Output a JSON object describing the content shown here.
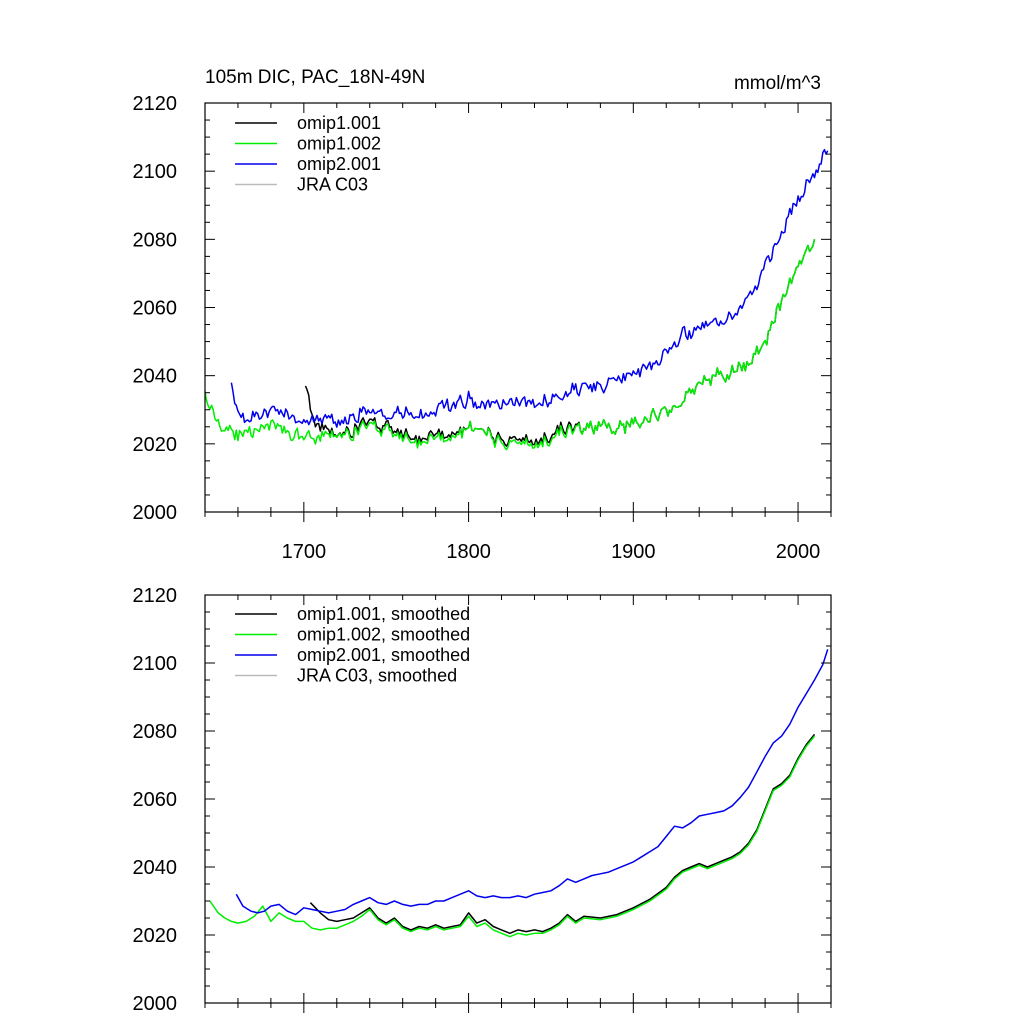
{
  "chart_data": [
    {
      "type": "line",
      "title": "105m DIC, PAC_18N-49N",
      "units_label": "mmol/m^3",
      "xlim": [
        1640,
        2020
      ],
      "ylim": [
        2000,
        2120
      ],
      "x_ticks": [
        1700,
        1800,
        1900,
        2000
      ],
      "x_tick_labels": [
        "1700",
        "1800",
        "1900",
        "2000"
      ],
      "y_ticks": [
        2000,
        2020,
        2040,
        2060,
        2080,
        2100,
        2120
      ],
      "y_tick_labels": [
        "2000",
        "2020",
        "2040",
        "2060",
        "2080",
        "2100",
        "2120"
      ],
      "legend_position": "top-left",
      "noisy": true,
      "series": [
        {
          "name": "omip1.001",
          "color": "#000000",
          "x": [
            1701,
            1704,
            1708,
            1712,
            1720,
            1730,
            1740,
            1750,
            1760,
            1770,
            1780,
            1790,
            1800,
            1810,
            1820,
            1830,
            1840,
            1850,
            1860,
            1870,
            1880,
            1890,
            1900,
            1910,
            1920,
            1930,
            1940,
            1950,
            1960,
            1970,
            1980,
            1990,
            2000,
            2010
          ],
          "y": [
            2037,
            2030,
            2026,
            2024,
            2022,
            2024,
            2027,
            2025,
            2022,
            2022,
            2023,
            2023,
            2025,
            2023,
            2021,
            2022,
            2021,
            2023,
            2025,
            2025,
            2025,
            2025,
            2026,
            2028,
            2030,
            2033,
            2037,
            2040,
            2041,
            2043,
            2050,
            2062,
            2072,
            2080
          ]
        },
        {
          "name": "omip1.002",
          "color": "#00ee00",
          "x": [
            1640,
            1645,
            1650,
            1660,
            1670,
            1680,
            1690,
            1700,
            1710,
            1720,
            1730,
            1740,
            1750,
            1760,
            1770,
            1780,
            1790,
            1800,
            1810,
            1820,
            1830,
            1840,
            1850,
            1860,
            1870,
            1880,
            1890,
            1900,
            1910,
            1920,
            1930,
            1940,
            1950,
            1960,
            1970,
            1980,
            1990,
            2000,
            2010
          ],
          "y": [
            2036,
            2028,
            2025,
            2023,
            2024,
            2025,
            2023,
            2022,
            2022,
            2022,
            2023,
            2026,
            2024,
            2021,
            2021,
            2022,
            2022,
            2025,
            2023,
            2020,
            2021,
            2020,
            2022,
            2024,
            2025,
            2025,
            2025,
            2026,
            2028,
            2030,
            2033,
            2037,
            2040,
            2041,
            2043,
            2050,
            2062,
            2072,
            2080
          ]
        },
        {
          "name": "omip2.001",
          "color": "#0000ee",
          "x": [
            1656,
            1660,
            1665,
            1670,
            1680,
            1690,
            1700,
            1710,
            1720,
            1730,
            1740,
            1750,
            1760,
            1770,
            1780,
            1790,
            1800,
            1810,
            1820,
            1830,
            1840,
            1850,
            1860,
            1870,
            1880,
            1890,
            1900,
            1910,
            1920,
            1930,
            1940,
            1950,
            1960,
            1970,
            1980,
            1990,
            2000,
            2010,
            2018
          ],
          "y": [
            2038,
            2030,
            2026,
            2028,
            2029,
            2028,
            2028,
            2027,
            2026,
            2027,
            2030,
            2029,
            2029,
            2029,
            2030,
            2031,
            2033,
            2031,
            2031,
            2032,
            2032,
            2033,
            2035,
            2036,
            2037,
            2039,
            2040,
            2043,
            2046,
            2052,
            2054,
            2056,
            2057,
            2062,
            2072,
            2082,
            2092,
            2100,
            2106
          ]
        },
        {
          "name": "JRA C03",
          "color": "#bbbbbb",
          "x": [],
          "y": []
        }
      ]
    },
    {
      "type": "line",
      "xlim": [
        1640,
        2020
      ],
      "ylim": [
        2000,
        2120
      ],
      "x_ticks": [
        1700,
        1800,
        1900,
        2000
      ],
      "y_ticks": [
        2000,
        2020,
        2040,
        2060,
        2080,
        2100,
        2120
      ],
      "y_tick_labels": [
        "2000",
        "2020",
        "2040",
        "2060",
        "2080",
        "2100",
        "2120"
      ],
      "legend_position": "top-left",
      "noisy": false,
      "series": [
        {
          "name": "omip1.001, smoothed",
          "color": "#000000",
          "x": [
            1704,
            1710,
            1715,
            1720,
            1725,
            1730,
            1735,
            1740,
            1745,
            1750,
            1755,
            1760,
            1765,
            1770,
            1775,
            1780,
            1785,
            1790,
            1795,
            1800,
            1805,
            1810,
            1815,
            1820,
            1825,
            1830,
            1835,
            1840,
            1845,
            1850,
            1855,
            1860,
            1865,
            1870,
            1880,
            1890,
            1900,
            1910,
            1920,
            1925,
            1930,
            1935,
            1940,
            1945,
            1950,
            1955,
            1960,
            1965,
            1970,
            1975,
            1980,
            1985,
            1990,
            1995,
            2000,
            2005,
            2010
          ],
          "y": [
            2029.5,
            2026.5,
            2024.5,
            2024.0,
            2024.5,
            2025.0,
            2026.5,
            2028.0,
            2025.0,
            2023.5,
            2025.0,
            2022.5,
            2021.5,
            2022.5,
            2022.0,
            2023.0,
            2022.0,
            2022.5,
            2023.0,
            2026.5,
            2023.5,
            2024.5,
            2022.5,
            2021.5,
            2020.5,
            2021.5,
            2021.0,
            2021.5,
            2021.0,
            2022.0,
            2023.5,
            2026.0,
            2024.0,
            2025.5,
            2025.0,
            2026.0,
            2028.0,
            2030.5,
            2034.0,
            2037.0,
            2039.0,
            2040.0,
            2041.0,
            2040.0,
            2041.0,
            2042.0,
            2043.0,
            2044.5,
            2047.0,
            2051.0,
            2057.0,
            2063.0,
            2064.5,
            2067.0,
            2072.0,
            2076.0,
            2079.0
          ]
        },
        {
          "name": "omip1.002, smoothed",
          "color": "#00ee00",
          "x": [
            1643,
            1648,
            1652,
            1656,
            1660,
            1665,
            1670,
            1675,
            1680,
            1685,
            1690,
            1695,
            1700,
            1705,
            1710,
            1715,
            1720,
            1725,
            1730,
            1735,
            1740,
            1745,
            1750,
            1755,
            1760,
            1765,
            1770,
            1775,
            1780,
            1785,
            1790,
            1795,
            1800,
            1805,
            1810,
            1815,
            1820,
            1825,
            1830,
            1835,
            1840,
            1845,
            1850,
            1855,
            1860,
            1865,
            1870,
            1880,
            1890,
            1900,
            1910,
            1920,
            1925,
            1930,
            1935,
            1940,
            1945,
            1950,
            1955,
            1960,
            1965,
            1970,
            1975,
            1980,
            1985,
            1990,
            1995,
            2000,
            2005,
            2010
          ],
          "y": [
            2030.0,
            2026.5,
            2025.0,
            2024.0,
            2023.5,
            2024.0,
            2025.5,
            2028.5,
            2024.0,
            2026.5,
            2025.0,
            2024.0,
            2024.0,
            2022.0,
            2021.5,
            2022.0,
            2022.0,
            2023.0,
            2024.0,
            2025.5,
            2027.5,
            2024.5,
            2023.0,
            2024.5,
            2022.0,
            2021.0,
            2022.0,
            2021.5,
            2022.5,
            2021.5,
            2022.0,
            2022.5,
            2025.5,
            2022.5,
            2023.5,
            2021.5,
            2020.5,
            2019.5,
            2020.5,
            2020.0,
            2020.5,
            2020.5,
            2021.5,
            2023.0,
            2025.5,
            2023.5,
            2025.0,
            2024.5,
            2025.5,
            2027.5,
            2030.0,
            2033.5,
            2036.5,
            2038.5,
            2039.5,
            2040.5,
            2039.5,
            2040.5,
            2041.5,
            2042.5,
            2044.0,
            2046.5,
            2050.5,
            2056.5,
            2062.5,
            2064.0,
            2066.5,
            2071.5,
            2075.5,
            2078.5
          ]
        },
        {
          "name": "omip2.001, smoothed",
          "color": "#0000ee",
          "x": [
            1659,
            1663,
            1668,
            1672,
            1676,
            1680,
            1685,
            1690,
            1695,
            1700,
            1705,
            1710,
            1715,
            1720,
            1725,
            1730,
            1735,
            1740,
            1745,
            1750,
            1755,
            1760,
            1765,
            1770,
            1775,
            1780,
            1785,
            1790,
            1795,
            1800,
            1805,
            1810,
            1815,
            1820,
            1825,
            1830,
            1835,
            1840,
            1845,
            1850,
            1855,
            1860,
            1865,
            1870,
            1875,
            1880,
            1885,
            1890,
            1895,
            1900,
            1905,
            1910,
            1915,
            1920,
            1925,
            1930,
            1935,
            1940,
            1945,
            1950,
            1955,
            1960,
            1965,
            1970,
            1975,
            1980,
            1985,
            1990,
            1995,
            2000,
            2005,
            2010,
            2015,
            2018
          ],
          "y": [
            2032.0,
            2028.5,
            2027.0,
            2026.5,
            2027.0,
            2028.5,
            2029.0,
            2027.0,
            2026.0,
            2028.0,
            2027.5,
            2027.0,
            2026.5,
            2027.0,
            2027.5,
            2029.0,
            2030.0,
            2031.0,
            2029.5,
            2029.0,
            2030.0,
            2029.0,
            2028.5,
            2029.0,
            2029.0,
            2030.0,
            2030.0,
            2031.0,
            2032.0,
            2033.0,
            2031.5,
            2031.0,
            2031.5,
            2031.0,
            2031.0,
            2031.5,
            2031.0,
            2032.0,
            2032.5,
            2033.0,
            2034.5,
            2036.5,
            2035.5,
            2036.5,
            2037.5,
            2038.0,
            2038.5,
            2039.5,
            2040.5,
            2041.5,
            2043.0,
            2044.5,
            2046.0,
            2049.0,
            2052.0,
            2051.5,
            2053.0,
            2055.0,
            2055.5,
            2056.0,
            2056.5,
            2058.0,
            2060.5,
            2063.5,
            2068.0,
            2072.5,
            2076.5,
            2078.5,
            2082.0,
            2087.0,
            2091.0,
            2095.0,
            2099.5,
            2104.0
          ]
        },
        {
          "name": "JRA C03, smoothed",
          "color": "#bbbbbb",
          "x": [],
          "y": []
        }
      ]
    }
  ]
}
